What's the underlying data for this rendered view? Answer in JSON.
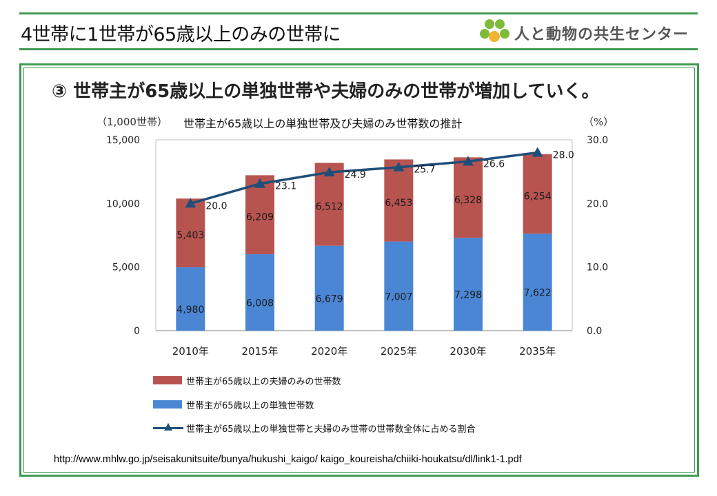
{
  "slide": {
    "title": "4世帯に1世帯が65歳以上のみの世帯に",
    "logo_text": "人と動物の共生センター",
    "heading": "③ 世帯主が65歳以上の単独世帯や夫婦のみの世帯が増加していく。",
    "source_url": "http://www.mhlw.go.jp/seisakunitsuite/bunya/hukushi_kaigo/ kaigo_koureisha/chiiki-houkatsu/dl/link1-1.pdf"
  },
  "colors": {
    "green_rule": "#3f9a52",
    "couple_bar": "#b85450",
    "single_bar": "#4a86d4",
    "ratio_line": "#1f4e79"
  },
  "chart_data": {
    "type": "bar",
    "stacked": true,
    "title": "世帯主が65歳以上の単独世帯及び夫婦のみ世帯数の推計",
    "unit_left": "（1,000世帯）",
    "unit_right": "（%）",
    "categories": [
      "2010年",
      "2015年",
      "2020年",
      "2025年",
      "2030年",
      "2035年"
    ],
    "ylim": [
      0,
      15000
    ],
    "yticks": [
      "0",
      "5,000",
      "10,000",
      "15,000"
    ],
    "y2lim": [
      0,
      30
    ],
    "y2ticks": [
      "0.0",
      "10.0",
      "20.0",
      "30.0"
    ],
    "series": [
      {
        "name": "世帯主が65歳以上の単独世帯数",
        "kind": "bar",
        "values": [
          4980,
          6008,
          6679,
          7007,
          7298,
          7622
        ],
        "labels": [
          "4,980",
          "6,008",
          "6,679",
          "7,007",
          "7,298",
          "7,622"
        ]
      },
      {
        "name": "世帯主が65歳以上の夫婦のみの世帯数",
        "kind": "bar",
        "values": [
          5403,
          6209,
          6512,
          6453,
          6328,
          6254
        ],
        "labels": [
          "5,403",
          "6,209",
          "6,512",
          "6,453",
          "6,328",
          "6,254"
        ]
      },
      {
        "name": "世帯主が65歳以上の単独世帯と夫婦のみ世帯の世帯数全体に占める割合",
        "kind": "line",
        "axis": "right",
        "values": [
          20.0,
          23.1,
          24.9,
          25.7,
          26.6,
          28.0
        ],
        "labels": [
          "20.0",
          "23.1",
          "24.9",
          "25.7",
          "26.6",
          "28.0"
        ]
      }
    ],
    "legend": [
      "世帯主が65歳以上の夫婦のみの世帯数",
      "世帯主が65歳以上の単独世帯数",
      "世帯主が65歳以上の単独世帯と夫婦のみ世帯の世帯数全体に占める割合"
    ],
    "grid": false
  }
}
